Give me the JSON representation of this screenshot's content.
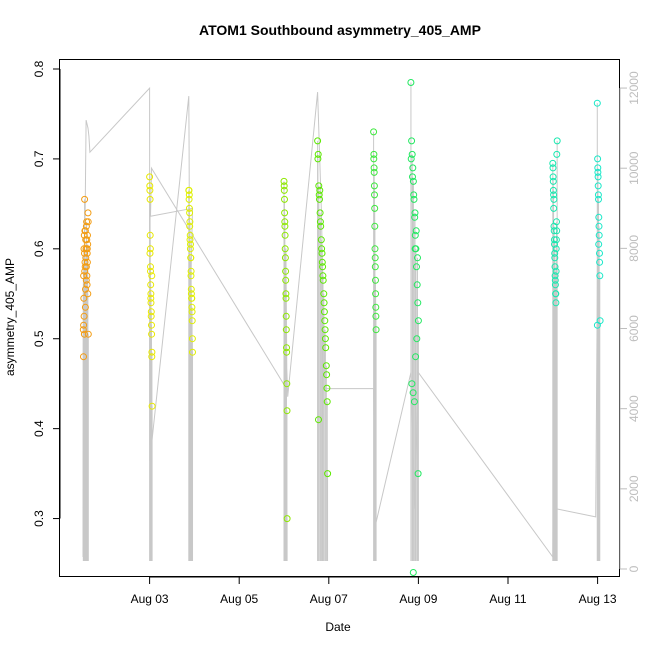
{
  "chart_data": {
    "type": "scatter",
    "title": "ATOM1 Southbound asymmetry_405_AMP",
    "xlabel": "Date",
    "ylabel": "asymmetry_405_AMP",
    "xlim": [
      "2024-08-01T00:00",
      "2024-08-13T12:00"
    ],
    "ylim": [
      0.235,
      0.81
    ],
    "x_ticks": [
      {
        "date": "2024-08-03",
        "label": "Aug 03"
      },
      {
        "date": "2024-08-05",
        "label": "Aug 05"
      },
      {
        "date": "2024-08-07",
        "label": "Aug 07"
      },
      {
        "date": "2024-08-09",
        "label": "Aug 09"
      },
      {
        "date": "2024-08-11",
        "label": "Aug 11"
      },
      {
        "date": "2024-08-13",
        "label": "Aug 13"
      }
    ],
    "y_ticks": [
      0.3,
      0.4,
      0.5,
      0.6,
      0.7,
      0.8
    ],
    "y_right_ticks": [
      0,
      2000,
      4000,
      6000,
      8000,
      10000,
      12000
    ],
    "y_right_lim": [
      -200,
      12700
    ],
    "legend": "none",
    "grid": false,
    "colors": {
      "aug01": "#f39c12",
      "aug02": "#e8e800",
      "aug03": "#dfef00",
      "aug06": "#8ee800",
      "aug07": "#5ce800",
      "aug08": "#3de83d",
      "aug09": "#22e860",
      "aug12": "#1ae8b0",
      "aug13": "#19e8c8",
      "secondary_line": "#c8c8c8"
    },
    "series": [
      {
        "color_key": "aug01",
        "x": [
          "2024-08-01T12:30",
          "2024-08-01T12:40",
          "2024-08-01T12:50",
          "2024-08-01T13:00",
          "2024-08-01T13:10",
          "2024-08-01T13:20",
          "2024-08-01T13:30",
          "2024-08-01T13:40",
          "2024-08-01T13:50",
          "2024-08-01T14:00",
          "2024-08-01T14:10",
          "2024-08-01T14:20",
          "2024-08-01T14:30",
          "2024-08-01T14:40",
          "2024-08-01T14:50",
          "2024-08-01T15:00",
          "2024-08-01T12:35",
          "2024-08-01T13:05",
          "2024-08-01T13:35",
          "2024-08-01T14:05",
          "2024-08-01T14:35",
          "2024-08-01T12:45",
          "2024-08-01T13:15",
          "2024-08-01T13:45",
          "2024-08-01T14:15",
          "2024-08-01T14:45",
          "2024-08-01T12:55",
          "2024-08-01T13:25",
          "2024-08-01T13:55",
          "2024-08-01T14:25",
          "2024-08-01T14:55",
          "2024-08-01T15:05",
          "2024-08-01T15:10",
          "2024-08-01T12:38",
          "2024-08-01T13:08",
          "2024-08-01T13:38",
          "2024-08-01T14:08",
          "2024-08-01T14:38"
        ],
        "y": [
          0.51,
          0.57,
          0.6,
          0.615,
          0.655,
          0.62,
          0.58,
          0.555,
          0.59,
          0.6,
          0.625,
          0.61,
          0.56,
          0.585,
          0.605,
          0.64,
          0.48,
          0.505,
          0.535,
          0.565,
          0.595,
          0.545,
          0.575,
          0.61,
          0.63,
          0.615,
          0.525,
          0.585,
          0.6,
          0.57,
          0.55,
          0.63,
          0.505,
          0.515,
          0.595,
          0.62,
          0.58,
          0.6
        ]
      },
      {
        "color_key": "aug02",
        "x": [
          "2024-08-03T00:00",
          "2024-08-03T00:10",
          "2024-08-03T00:20",
          "2024-08-03T00:30",
          "2024-08-03T00:40",
          "2024-08-03T00:50",
          "2024-08-03T01:00",
          "2024-08-03T01:10",
          "2024-08-03T01:20",
          "2024-08-03T00:05",
          "2024-08-03T00:15",
          "2024-08-03T00:25",
          "2024-08-03T00:35",
          "2024-08-03T00:45",
          "2024-08-03T00:55",
          "2024-08-03T01:05",
          "2024-08-03T01:15",
          "2024-08-03T00:12",
          "2024-08-03T00:42",
          "2024-08-03T01:12",
          "2024-08-03T00:28"
        ],
        "y": [
          0.68,
          0.665,
          0.615,
          0.575,
          0.545,
          0.525,
          0.515,
          0.48,
          0.425,
          0.67,
          0.655,
          0.6,
          0.56,
          0.54,
          0.53,
          0.505,
          0.485,
          0.595,
          0.55,
          0.57,
          0.58
        ]
      },
      {
        "color_key": "aug03",
        "x": [
          "2024-08-03T21:00",
          "2024-08-03T21:10",
          "2024-08-03T21:20",
          "2024-08-03T21:30",
          "2024-08-03T21:40",
          "2024-08-03T21:50",
          "2024-08-03T22:00",
          "2024-08-03T22:10",
          "2024-08-03T22:20",
          "2024-08-03T22:30",
          "2024-08-03T22:40",
          "2024-08-03T22:50",
          "2024-08-03T23:00",
          "2024-08-03T21:05",
          "2024-08-03T21:25",
          "2024-08-03T21:45",
          "2024-08-03T22:05",
          "2024-08-03T22:25",
          "2024-08-03T22:45",
          "2024-08-03T21:15",
          "2024-08-03T21:35",
          "2024-08-03T21:55",
          "2024-08-03T22:15",
          "2024-08-03T22:35",
          "2024-08-03T22:55"
        ],
        "y": [
          0.665,
          0.655,
          0.645,
          0.625,
          0.61,
          0.6,
          0.59,
          0.57,
          0.555,
          0.545,
          0.535,
          0.52,
          0.485,
          0.665,
          0.64,
          0.615,
          0.59,
          0.55,
          0.53,
          0.66,
          0.63,
          0.605,
          0.575,
          0.545,
          0.5
        ]
      },
      {
        "color_key": "aug06",
        "x": [
          "2024-08-06T00:00",
          "2024-08-06T00:10",
          "2024-08-06T00:20",
          "2024-08-06T00:30",
          "2024-08-06T00:40",
          "2024-08-06T00:50",
          "2024-08-06T01:00",
          "2024-08-06T01:10",
          "2024-08-06T01:20",
          "2024-08-06T01:30",
          "2024-08-06T01:40",
          "2024-08-06T00:05",
          "2024-08-06T00:25",
          "2024-08-06T00:45",
          "2024-08-06T01:05",
          "2024-08-06T01:25",
          "2024-08-06T00:15",
          "2024-08-06T00:35",
          "2024-08-06T00:55",
          "2024-08-06T01:15",
          "2024-08-06T01:35"
        ],
        "y": [
          0.675,
          0.665,
          0.64,
          0.625,
          0.6,
          0.575,
          0.55,
          0.525,
          0.49,
          0.45,
          0.3,
          0.67,
          0.63,
          0.59,
          0.545,
          0.485,
          0.655,
          0.615,
          0.565,
          0.51,
          0.42
        ]
      },
      {
        "color_key": "aug07",
        "x": [
          "2024-08-06T18:00",
          "2024-08-06T18:20",
          "2024-08-06T18:40",
          "2024-08-06T19:00",
          "2024-08-06T19:20",
          "2024-08-06T19:40",
          "2024-08-06T20:00",
          "2024-08-06T20:20",
          "2024-08-06T20:40",
          "2024-08-06T21:00",
          "2024-08-06T21:20",
          "2024-08-06T21:40",
          "2024-08-06T22:00",
          "2024-08-06T22:20",
          "2024-08-06T22:40",
          "2024-08-06T23:00",
          "2024-08-06T18:10",
          "2024-08-06T18:50",
          "2024-08-06T19:30",
          "2024-08-06T20:10",
          "2024-08-06T20:50",
          "2024-08-06T21:30",
          "2024-08-06T22:10",
          "2024-08-06T22:50",
          "2024-08-06T23:20",
          "2024-08-06T19:10",
          "2024-08-06T20:30",
          "2024-08-06T21:50",
          "2024-08-06T23:10",
          "2024-08-06T18:30"
        ],
        "y": [
          0.72,
          0.705,
          0.67,
          0.655,
          0.64,
          0.625,
          0.61,
          0.595,
          0.58,
          0.565,
          0.55,
          0.53,
          0.51,
          0.49,
          0.47,
          0.445,
          0.7,
          0.66,
          0.63,
          0.6,
          0.57,
          0.54,
          0.5,
          0.46,
          0.35,
          0.665,
          0.585,
          0.52,
          0.43,
          0.41
        ]
      },
      {
        "color_key": "aug08",
        "x": [
          "2024-08-08T00:00",
          "2024-08-08T00:10",
          "2024-08-08T00:20",
          "2024-08-08T00:30",
          "2024-08-08T00:40",
          "2024-08-08T00:50",
          "2024-08-08T01:00",
          "2024-08-08T01:10",
          "2024-08-08T01:20",
          "2024-08-08T00:05",
          "2024-08-08T00:25",
          "2024-08-08T00:45",
          "2024-08-08T01:05",
          "2024-08-08T00:15",
          "2024-08-08T00:35",
          "2024-08-08T00:55",
          "2024-08-08T01:15"
        ],
        "y": [
          0.73,
          0.705,
          0.685,
          0.66,
          0.625,
          0.59,
          0.565,
          0.535,
          0.51,
          0.7,
          0.67,
          0.6,
          0.55,
          0.69,
          0.645,
          0.58,
          0.525
        ]
      },
      {
        "color_key": "aug09",
        "x": [
          "2024-08-08T20:00",
          "2024-08-08T20:20",
          "2024-08-08T20:40",
          "2024-08-08T21:00",
          "2024-08-08T21:20",
          "2024-08-08T21:40",
          "2024-08-08T22:00",
          "2024-08-08T22:20",
          "2024-08-08T22:40",
          "2024-08-08T23:00",
          "2024-08-08T23:20",
          "2024-08-08T23:40",
          "2024-08-09T00:00",
          "2024-08-08T20:10",
          "2024-08-08T20:50",
          "2024-08-08T21:30",
          "2024-08-08T22:10",
          "2024-08-08T22:50",
          "2024-08-08T23:30",
          "2024-08-08T20:30",
          "2024-08-08T21:10",
          "2024-08-08T21:50",
          "2024-08-08T22:30",
          "2024-08-08T23:10",
          "2024-08-08T23:50",
          "2024-08-08T21:15",
          "2024-08-08T22:15"
        ],
        "y": [
          0.785,
          0.72,
          0.705,
          0.69,
          0.675,
          0.655,
          0.635,
          0.615,
          0.6,
          0.58,
          0.56,
          0.54,
          0.52,
          0.7,
          0.68,
          0.66,
          0.64,
          0.62,
          0.59,
          0.45,
          0.44,
          0.43,
          0.48,
          0.5,
          0.35,
          0.24,
          0.6
        ]
      },
      {
        "color_key": "aug12",
        "x": [
          "2024-08-12T00:00",
          "2024-08-12T00:10",
          "2024-08-12T00:20",
          "2024-08-12T00:30",
          "2024-08-12T00:40",
          "2024-08-12T00:50",
          "2024-08-12T01:00",
          "2024-08-12T01:10",
          "2024-08-12T01:20",
          "2024-08-12T01:30",
          "2024-08-12T01:40",
          "2024-08-12T01:50",
          "2024-08-12T02:00",
          "2024-08-12T02:10",
          "2024-08-12T02:20",
          "2024-08-12T00:05",
          "2024-08-12T00:25",
          "2024-08-12T00:45",
          "2024-08-12T01:05",
          "2024-08-12T01:25",
          "2024-08-12T01:45",
          "2024-08-12T02:05",
          "2024-08-12T00:15",
          "2024-08-12T00:35",
          "2024-08-12T00:55",
          "2024-08-12T01:15",
          "2024-08-12T01:35",
          "2024-08-12T01:55"
        ],
        "y": [
          0.695,
          0.68,
          0.665,
          0.645,
          0.625,
          0.61,
          0.595,
          0.58,
          0.565,
          0.55,
          0.54,
          0.6,
          0.63,
          0.705,
          0.72,
          0.69,
          0.66,
          0.62,
          0.59,
          0.56,
          0.575,
          0.62,
          0.675,
          0.655,
          0.605,
          0.57,
          0.55,
          0.61
        ]
      },
      {
        "color_key": "aug13",
        "x": [
          "2024-08-12T23:50",
          "2024-08-13T00:00",
          "2024-08-13T00:10",
          "2024-08-13T00:20",
          "2024-08-13T00:30",
          "2024-08-13T00:40",
          "2024-08-13T00:50",
          "2024-08-13T01:00",
          "2024-08-13T01:10",
          "2024-08-13T01:20",
          "2024-08-13T00:05",
          "2024-08-13T00:25",
          "2024-08-13T00:45",
          "2024-08-13T01:05",
          "2024-08-12T23:55",
          "2024-08-13T00:15",
          "2024-08-13T00:35"
        ],
        "y": [
          0.762,
          0.7,
          0.685,
          0.67,
          0.655,
          0.635,
          0.615,
          0.595,
          0.57,
          0.52,
          0.69,
          0.66,
          0.625,
          0.585,
          0.515,
          0.68,
          0.605
        ]
      }
    ],
    "secondary_series": {
      "axis": "right",
      "x": [
        "2024-08-01T12:20",
        "2024-08-01T12:25",
        "2024-08-01T12:30",
        "2024-08-01T13:30",
        "2024-08-01T14:00",
        "2024-08-01T15:00",
        "2024-08-01T15:30",
        "2024-08-01T16:00",
        "2024-08-03T00:00",
        "2024-08-03T00:05",
        "2024-08-03T21:00",
        "2024-08-03T21:10",
        "2024-08-03T21:20",
        "2024-08-03T22:00",
        "2024-08-03T23:00",
        "2024-08-03T00:30",
        "2024-08-03T01:00",
        "2024-08-06T00:00",
        "2024-08-06T01:00",
        "2024-08-06T01:30",
        "2024-08-06T02:00",
        "2024-08-06T18:00",
        "2024-08-06T20:00",
        "2024-08-06T22:00",
        "2024-08-06T23:00",
        "2024-08-08T00:00",
        "2024-08-08T01:00",
        "2024-08-08T20:00",
        "2024-08-08T22:00",
        "2024-08-09T00:00",
        "2024-08-12T00:00",
        "2024-08-12T01:00",
        "2024-08-12T02:00",
        "2024-08-12T23:00",
        "2024-08-13T00:00"
      ],
      "y": [
        300,
        5500,
        7000,
        9000,
        11200,
        11000,
        10800,
        10400,
        12000,
        2700,
        11800,
        10500,
        8200,
        7000,
        9000,
        8800,
        10000,
        4600,
        8000,
        5000,
        4300,
        11900,
        9000,
        4500,
        4500,
        4500,
        1100,
        4900,
        1500,
        4900,
        300,
        8200,
        1500,
        1300,
        8000
      ]
    }
  }
}
